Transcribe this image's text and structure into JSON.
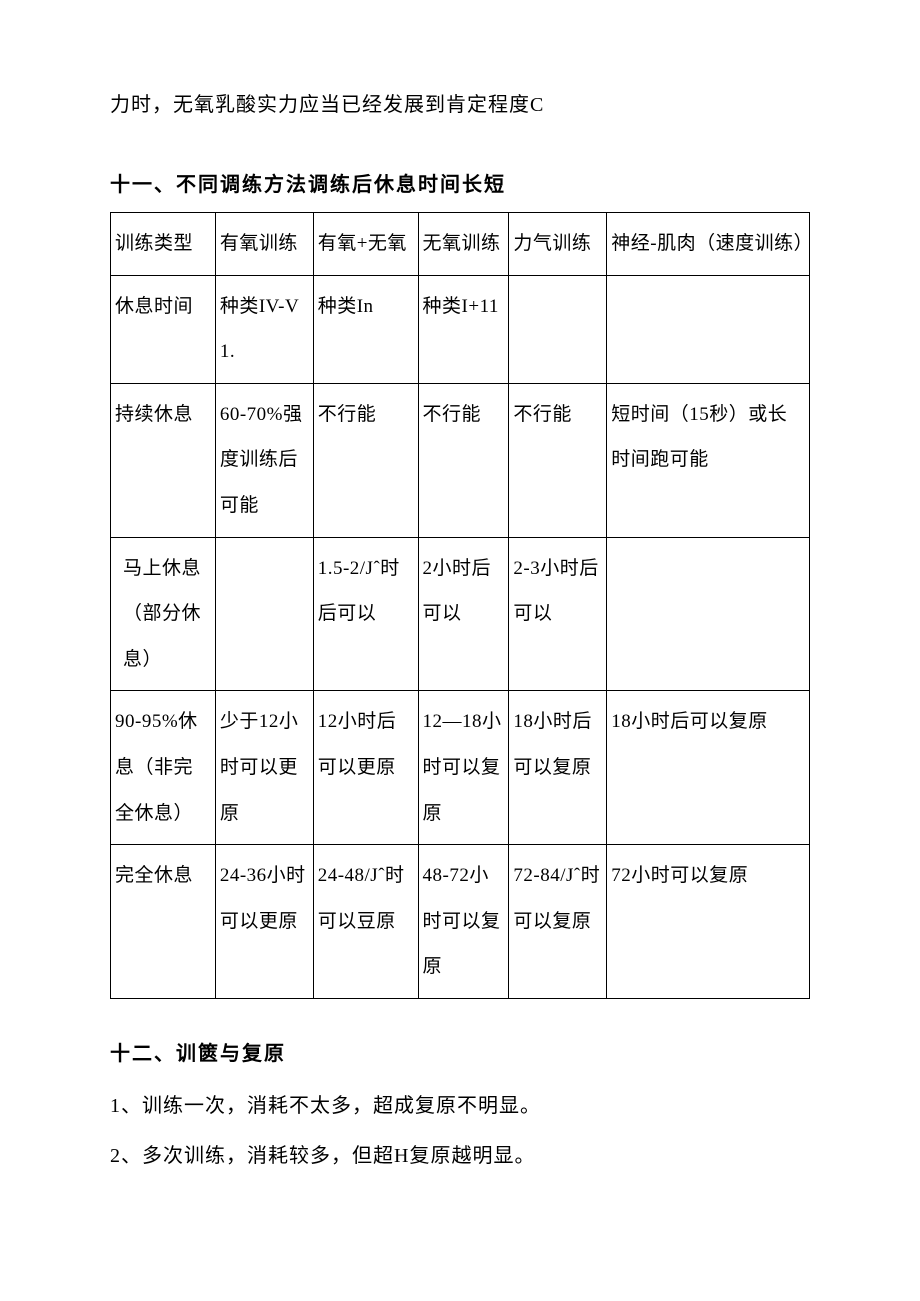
{
  "intro": "力时，无氧乳酸实力应当已经发展到肯定程度C",
  "section11": {
    "heading": "十一、不同调练方法调练后休息时间长短",
    "table": {
      "rows": [
        [
          "训练类型",
          "有氧训练",
          "有氧+无氧",
          "无氧训练",
          "力气训练",
          "神经-肌肉（速度训练）"
        ],
        [
          "休息时间",
          "种类IV-V1.",
          "种类In",
          "种类I+11",
          "",
          ""
        ],
        [
          "持续休息",
          "60-70%强度训练后可能",
          "不行能",
          "不行能",
          "不行能",
          "短时间（15秒）或长时间跑可能"
        ],
        [
          "马上休息（部分休息）",
          "",
          "1.5-2/Jˆ时后可以",
          "2小时后可以",
          "2-3小时后可以",
          ""
        ],
        [
          "90-95%休息（非完全休息）",
          "少于12小时可以更原",
          "12小时后可以更原",
          "12—18小时可以复原",
          "18小时后可以复原",
          "18小时后可以复原"
        ],
        [
          "完全休息",
          "24-36小时可以更原",
          "24-48/Jˆ时可以豆原",
          "48-72小时可以复原",
          "72-84/Jˆ时可以复原",
          "72小时可以复原"
        ]
      ]
    }
  },
  "section12": {
    "heading": "十二、训篋与复原",
    "items": [
      "1、训练一次，消耗不太多，超成复原不明显。",
      "2、多次训练，消耗较多，但超H复原越明显。"
    ]
  },
  "colors": {
    "text": "#000000",
    "background": "#ffffff",
    "border": "#000000"
  },
  "typography": {
    "body_fontsize": 20,
    "table_fontsize": 19,
    "heading_weight": "bold",
    "font_family_body": "SimSun",
    "font_family_heading": "SimHei"
  }
}
